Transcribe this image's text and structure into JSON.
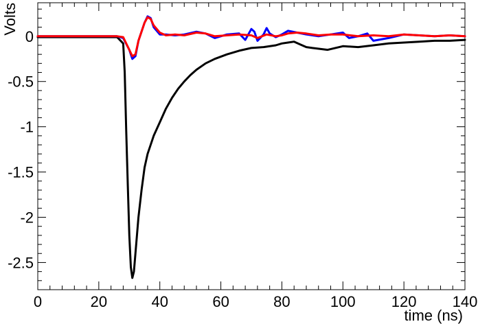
{
  "chart_data": {
    "type": "line",
    "xlabel": "time (ns)",
    "ylabel": "Volts",
    "xlim": [
      0,
      140
    ],
    "ylim": [
      -2.8,
      0.37
    ],
    "xticks": [
      0,
      20,
      40,
      60,
      80,
      100,
      120,
      140
    ],
    "yticks": [
      0,
      -0.5,
      -1,
      -1.5,
      -2,
      -2.5
    ],
    "grid": false,
    "series": [
      {
        "color": "#000000",
        "x": [
          0,
          10,
          20,
          26,
          28,
          28.5,
          29,
          29.5,
          30,
          30.5,
          31,
          31.5,
          32,
          33,
          34,
          35,
          36,
          38,
          40,
          42,
          44,
          46,
          48,
          50,
          52,
          55,
          58,
          62,
          66,
          70,
          74,
          78,
          80,
          82,
          84,
          86,
          88,
          90,
          95,
          100,
          105,
          110,
          115,
          120,
          125,
          130,
          135,
          140
        ],
        "y": [
          -0.01,
          -0.01,
          -0.01,
          -0.01,
          -0.08,
          -0.4,
          -1.05,
          -1.65,
          -2.2,
          -2.55,
          -2.67,
          -2.6,
          -2.4,
          -2.0,
          -1.7,
          -1.45,
          -1.3,
          -1.1,
          -0.95,
          -0.8,
          -0.68,
          -0.58,
          -0.5,
          -0.43,
          -0.37,
          -0.3,
          -0.25,
          -0.2,
          -0.16,
          -0.13,
          -0.12,
          -0.1,
          -0.08,
          -0.07,
          -0.06,
          -0.09,
          -0.12,
          -0.13,
          -0.15,
          -0.11,
          -0.12,
          -0.1,
          -0.08,
          -0.07,
          -0.06,
          -0.05,
          -0.05,
          -0.04
        ]
      },
      {
        "color": "#0000ff",
        "x": [
          0,
          10,
          20,
          26,
          28,
          30,
          31,
          32,
          33,
          35,
          36,
          37,
          38,
          40,
          42,
          45,
          48,
          52,
          55,
          58,
          62,
          66,
          68,
          70,
          71,
          72,
          74,
          75,
          76,
          78,
          80,
          82,
          85,
          88,
          92,
          96,
          100,
          102,
          105,
          108,
          110,
          115,
          120,
          125,
          130,
          135,
          140
        ],
        "y": [
          0,
          0,
          0,
          0,
          -0.02,
          -0.15,
          -0.25,
          -0.22,
          -0.05,
          0.15,
          0.22,
          0.2,
          0.1,
          0.02,
          0.02,
          0.01,
          0.02,
          0.05,
          0.03,
          -0.02,
          0.02,
          0.03,
          -0.04,
          0.08,
          0.05,
          -0.05,
          0.02,
          0.09,
          0.03,
          -0.01,
          0.02,
          0.06,
          0.04,
          0.02,
          0.0,
          0.02,
          0.04,
          -0.02,
          0.0,
          0.03,
          -0.05,
          -0.02,
          0.02,
          0.01,
          0.0,
          0.01,
          0.0
        ]
      },
      {
        "color": "#ff0000",
        "x": [
          0,
          10,
          20,
          26,
          28,
          30,
          31,
          32,
          33,
          35,
          36,
          37,
          38,
          40,
          42,
          45,
          48,
          52,
          55,
          58,
          62,
          66,
          70,
          72,
          75,
          78,
          80,
          82,
          85,
          88,
          92,
          96,
          100,
          105,
          110,
          115,
          120,
          125,
          130,
          135,
          140
        ],
        "y": [
          0,
          0,
          0,
          0,
          -0.01,
          -0.15,
          -0.22,
          -0.2,
          -0.05,
          0.15,
          0.21,
          0.19,
          0.12,
          0.04,
          0.01,
          0.02,
          0.01,
          0.04,
          0.03,
          0.0,
          0.01,
          0.02,
          0.01,
          -0.02,
          0.02,
          0.0,
          0.01,
          0.03,
          0.04,
          0.03,
          0.01,
          0.02,
          0.02,
          0.0,
          0.01,
          0.0,
          0.02,
          0.01,
          0.0,
          0.01,
          0.0
        ]
      }
    ]
  }
}
